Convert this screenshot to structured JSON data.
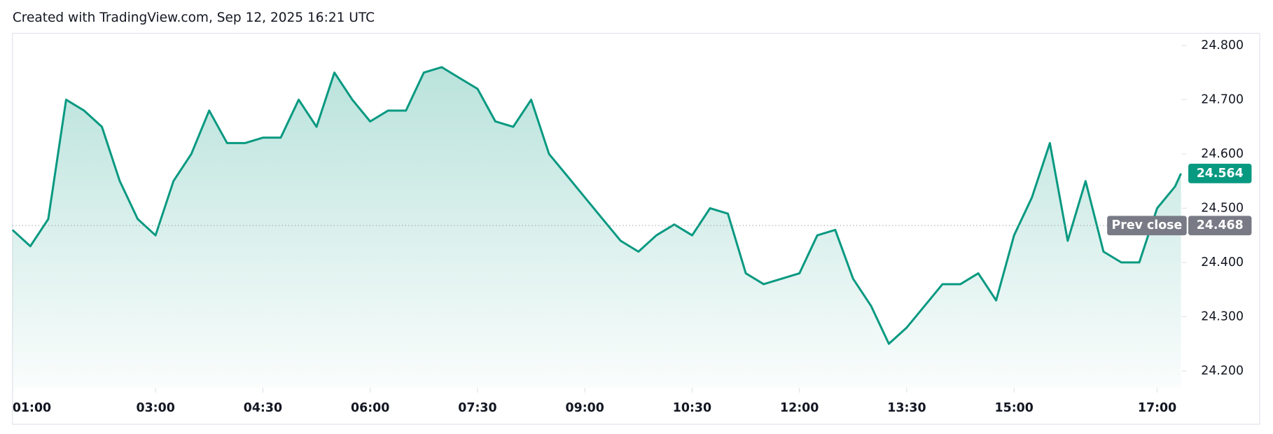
{
  "chart_data": {
    "type": "line",
    "title": "Created with TradingView.com, Sep 12, 2025 16:21 UTC",
    "color": "#089981",
    "x": [
      "01:00",
      "01:15",
      "01:30",
      "01:45",
      "02:00",
      "02:15",
      "02:30",
      "02:45",
      "03:00",
      "03:15",
      "03:30",
      "03:45",
      "04:00",
      "04:15",
      "04:30",
      "04:45",
      "05:00",
      "05:15",
      "05:30",
      "05:45",
      "06:00",
      "06:15",
      "06:30",
      "06:45",
      "07:00",
      "07:15",
      "07:30",
      "07:45",
      "08:00",
      "08:15",
      "08:30",
      "08:45",
      "09:00",
      "09:15",
      "09:30",
      "09:45",
      "10:00",
      "10:15",
      "10:30",
      "10:45",
      "11:00",
      "11:15",
      "11:30",
      "11:45",
      "12:00",
      "12:15",
      "12:30",
      "12:45",
      "13:00",
      "13:15",
      "13:30",
      "13:45",
      "14:00",
      "14:15",
      "14:30",
      "14:45",
      "15:00",
      "15:15",
      "15:30",
      "15:45",
      "16:00",
      "16:15",
      "16:30",
      "16:45",
      "17:00",
      "17:15",
      "17:20"
    ],
    "values": [
      24.46,
      24.43,
      24.48,
      24.7,
      24.68,
      24.65,
      24.55,
      24.48,
      24.45,
      24.55,
      24.6,
      24.68,
      24.62,
      24.62,
      24.63,
      24.63,
      24.7,
      24.65,
      24.75,
      24.7,
      24.66,
      24.68,
      24.68,
      24.75,
      24.76,
      24.74,
      24.72,
      24.66,
      24.65,
      24.7,
      24.6,
      24.56,
      24.52,
      24.48,
      24.44,
      24.42,
      24.45,
      24.47,
      24.45,
      24.5,
      24.49,
      24.38,
      24.36,
      24.37,
      24.38,
      24.45,
      24.46,
      24.37,
      24.32,
      24.25,
      24.28,
      24.32,
      24.36,
      24.36,
      24.38,
      24.33,
      24.45,
      24.52,
      24.62,
      24.44,
      24.55,
      24.42,
      24.4,
      24.4,
      24.5,
      24.54,
      24.564
    ],
    "xlim": [
      "01:00",
      "17:20"
    ],
    "xticks": [
      "01:00",
      "03:00",
      "04:30",
      "06:00",
      "07:30",
      "09:00",
      "10:30",
      "12:00",
      "13:30",
      "15:00",
      "17:00"
    ],
    "ylim": [
      24.169,
      24.821
    ],
    "yticks": [
      {
        "value": 24.2,
        "label": "24.200"
      },
      {
        "value": 24.3,
        "label": "24.300"
      },
      {
        "value": 24.4,
        "label": "24.400"
      },
      {
        "value": 24.5,
        "label": "24.500"
      },
      {
        "value": 24.6,
        "label": "24.600"
      },
      {
        "value": 24.7,
        "label": "24.700"
      },
      {
        "value": 24.8,
        "label": "24.800"
      }
    ],
    "prev_close": {
      "label": "Prev close",
      "value": 24.468
    }
  }
}
